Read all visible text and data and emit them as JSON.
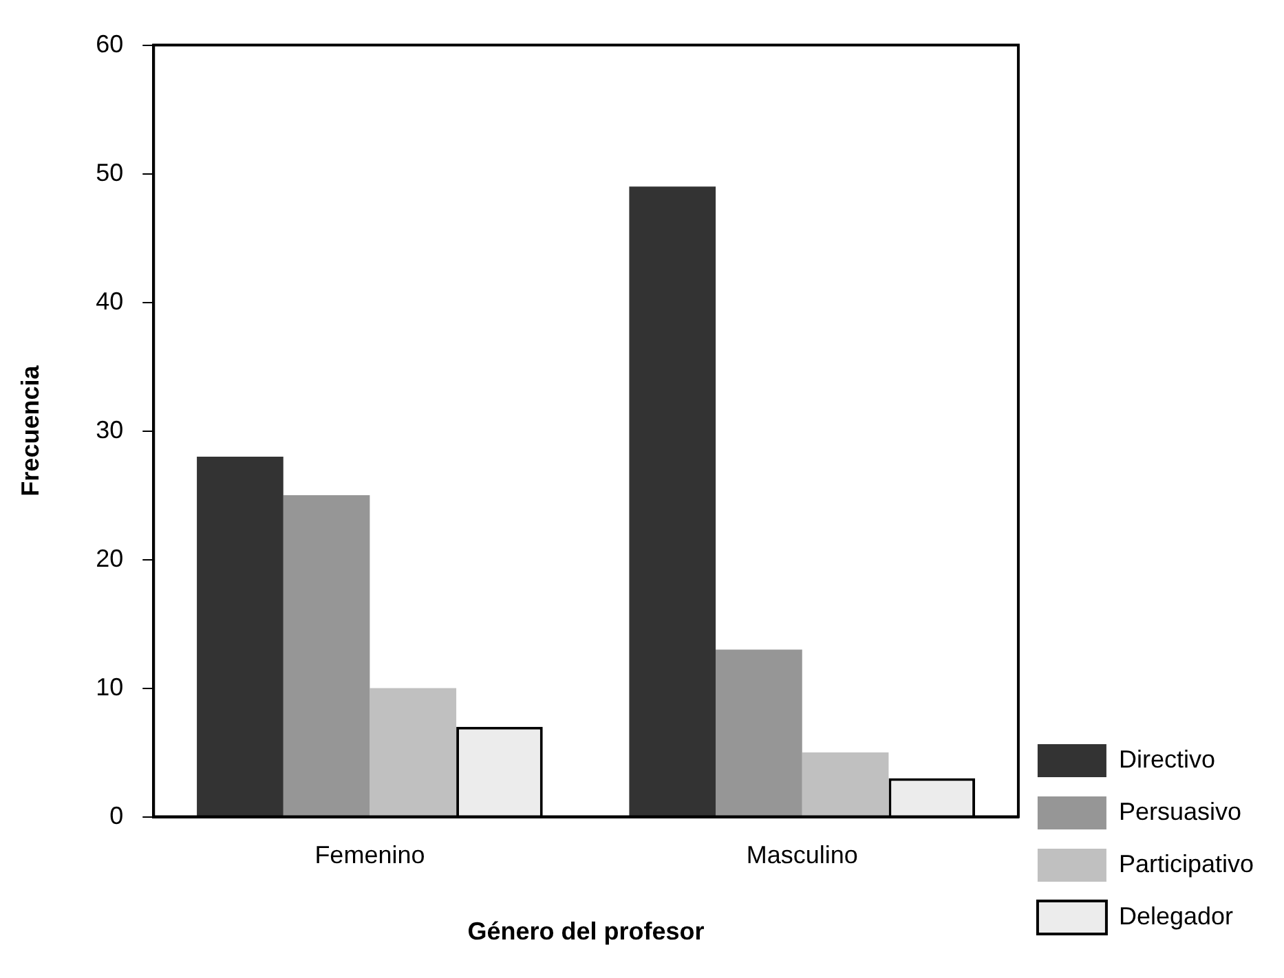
{
  "chart_data": {
    "type": "bar",
    "xlabel": "Género del profesor",
    "ylabel": "Frecuencia",
    "categories": [
      "Femenino",
      "Masculino"
    ],
    "series": [
      {
        "name": "Directivo",
        "color": "#333333",
        "values": [
          28,
          49
        ]
      },
      {
        "name": "Persuasivo",
        "color": "#969696",
        "values": [
          25,
          13
        ]
      },
      {
        "name": "Participativo",
        "color": "#c0c0c0",
        "values": [
          10,
          5
        ]
      },
      {
        "name": "Delegador",
        "color": "#ececec",
        "values": [
          7,
          3
        ]
      }
    ],
    "ylim": [
      0,
      60
    ],
    "yticks": [
      0,
      10,
      20,
      30,
      40,
      50,
      60
    ],
    "grid": false,
    "legend": "right"
  }
}
